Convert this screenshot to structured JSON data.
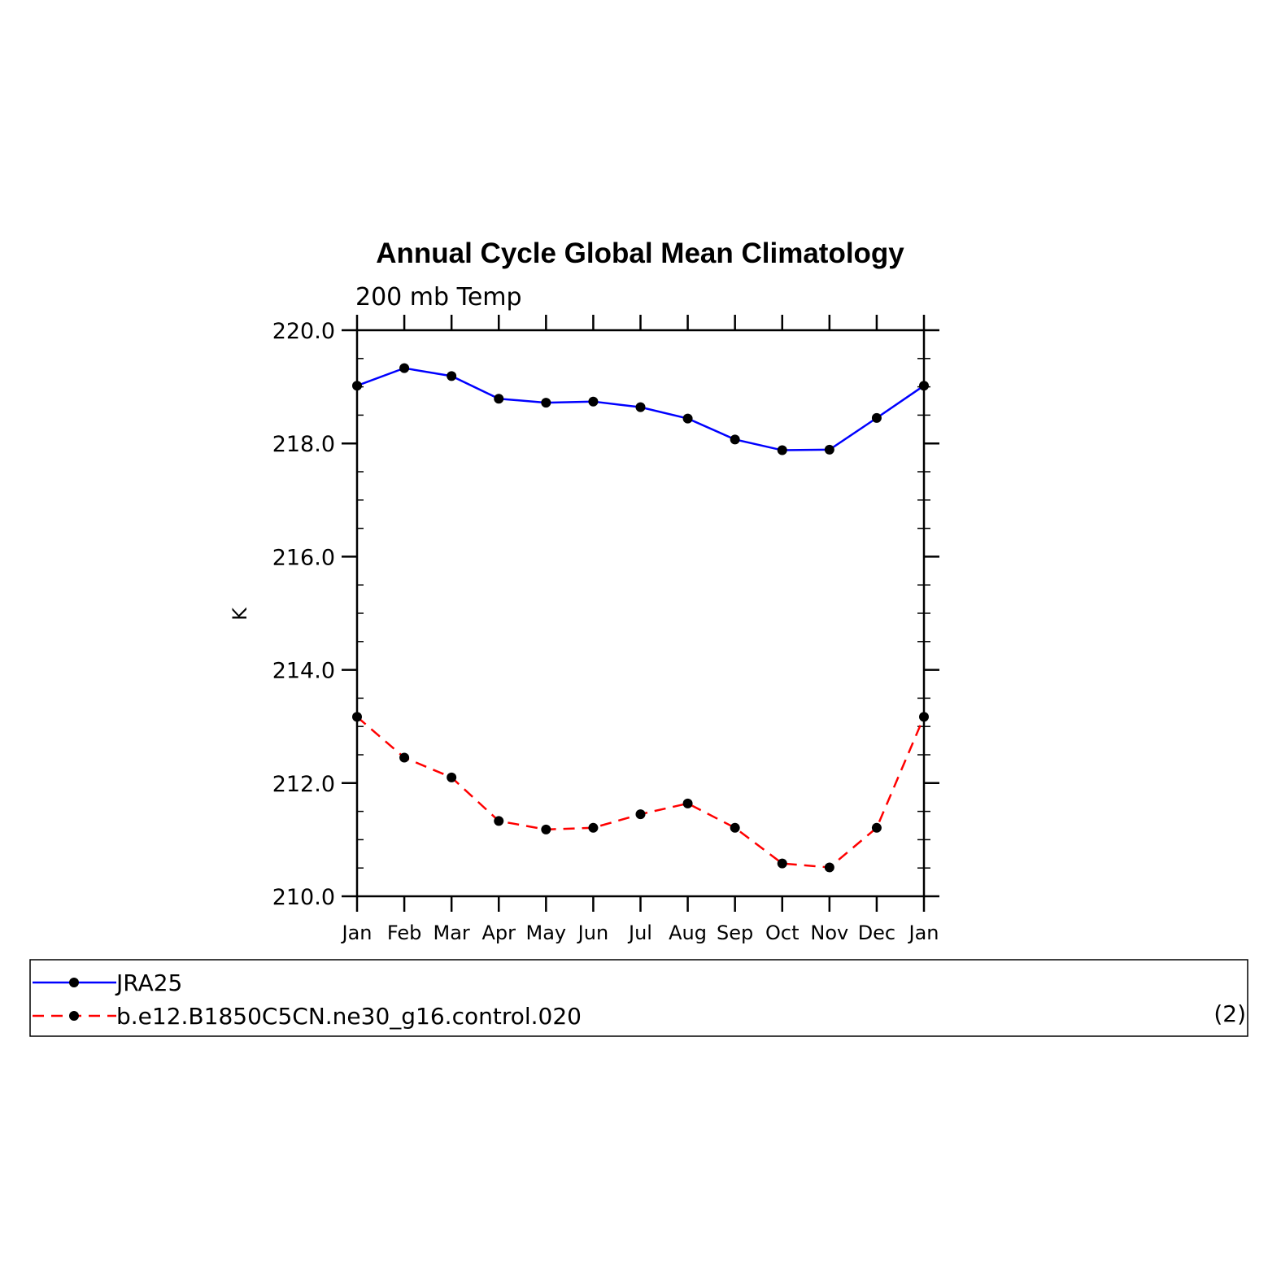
{
  "chart_data": {
    "type": "line",
    "title": "Annual Cycle Global Mean Climatology",
    "subtitle": "200 mb Temp",
    "xlabel": "",
    "ylabel": "K",
    "categories": [
      "Jan",
      "Feb",
      "Mar",
      "Apr",
      "May",
      "Jun",
      "Jul",
      "Aug",
      "Sep",
      "Oct",
      "Nov",
      "Dec",
      "Jan"
    ],
    "ylim": [
      210.0,
      220.0
    ],
    "yticks": [
      "210.0",
      "212.0",
      "214.0",
      "216.0",
      "218.0",
      "220.0"
    ],
    "grid": false,
    "legend_position": "bottom",
    "series": [
      {
        "name": "JRA25",
        "color": "#0000ff",
        "line_style": "solid",
        "marker": "filled-circle",
        "values": [
          219.02,
          219.33,
          219.19,
          218.79,
          218.72,
          218.74,
          218.64,
          218.44,
          218.07,
          217.88,
          217.89,
          218.45,
          219.02
        ]
      },
      {
        "name": "b.e12.B1850C5CN.ne30_g16.control.020",
        "color": "#ff0000",
        "line_style": "dashed",
        "marker": "filled-circle",
        "values": [
          213.17,
          212.45,
          212.1,
          211.33,
          211.18,
          211.21,
          211.45,
          211.64,
          211.21,
          210.58,
          210.51,
          211.21,
          213.17
        ]
      }
    ],
    "legend_annotation": "(2)"
  }
}
